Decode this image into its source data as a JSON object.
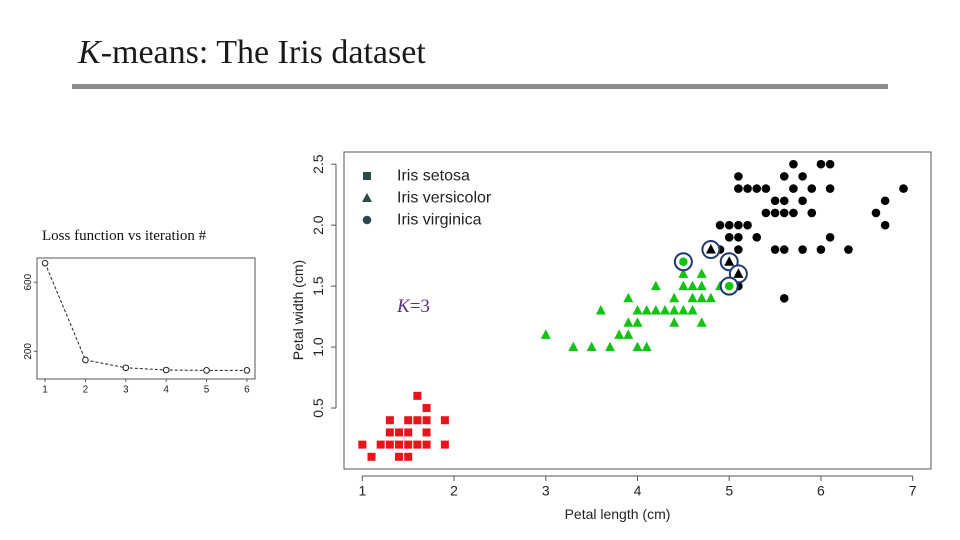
{
  "slide": {
    "title_k": "K",
    "title_rest": "-means: The Iris dataset",
    "loss_label": "Loss function vs iteration #",
    "k_prefix": "K",
    "k_suffix": "=3"
  },
  "colors": {
    "setosa": "#e8141b",
    "versicolor": "#14c214",
    "virginica": "#000000",
    "highlight": "#1f3a6e",
    "legend_marker": "#2d4a4a",
    "title_rule": "#8c8c8c",
    "k_label": "#5a2e86"
  },
  "chart_data": [
    {
      "type": "line",
      "title": "Loss function vs iteration #",
      "xlabel": "",
      "ylabel": "",
      "x": [
        1,
        2,
        3,
        4,
        5,
        6
      ],
      "values": [
        710,
        150,
        105,
        92,
        90,
        90
      ],
      "xticks": [
        "1",
        "2",
        "3",
        "4",
        "5",
        "6"
      ],
      "yticks": [
        "200",
        "600"
      ],
      "xlim": [
        0.8,
        6.2
      ],
      "ylim": [
        40,
        740
      ],
      "marker": "open-circle",
      "line_style": "dashed"
    },
    {
      "type": "scatter",
      "xlabel": "Petal length (cm)",
      "ylabel": "Petal width (cm)",
      "xlim": [
        0.8,
        7.2
      ],
      "ylim": [
        0,
        2.6
      ],
      "xticks": [
        "1",
        "2",
        "3",
        "4",
        "5",
        "6",
        "7"
      ],
      "yticks": [
        "0.5",
        "1.0",
        "1.5",
        "2.0",
        "2.5"
      ],
      "legend": {
        "position": "top-left",
        "entries": [
          "Iris setosa",
          "Iris versicolor",
          "Iris virginica"
        ]
      },
      "series": [
        {
          "name": "Iris setosa",
          "marker": "square",
          "points": [
            [
              1.0,
              0.2
            ],
            [
              1.1,
              0.1
            ],
            [
              1.2,
              0.2
            ],
            [
              1.3,
              0.2
            ],
            [
              1.3,
              0.3
            ],
            [
              1.3,
              0.4
            ],
            [
              1.4,
              0.1
            ],
            [
              1.4,
              0.2
            ],
            [
              1.4,
              0.3
            ],
            [
              1.5,
              0.1
            ],
            [
              1.5,
              0.2
            ],
            [
              1.5,
              0.3
            ],
            [
              1.5,
              0.4
            ],
            [
              1.6,
              0.2
            ],
            [
              1.6,
              0.4
            ],
            [
              1.6,
              0.6
            ],
            [
              1.7,
              0.2
            ],
            [
              1.7,
              0.3
            ],
            [
              1.7,
              0.4
            ],
            [
              1.7,
              0.5
            ],
            [
              1.9,
              0.2
            ],
            [
              1.9,
              0.4
            ]
          ]
        },
        {
          "name": "Iris versicolor",
          "marker": "triangle",
          "points": [
            [
              3.0,
              1.1
            ],
            [
              3.3,
              1.0
            ],
            [
              3.5,
              1.0
            ],
            [
              3.6,
              1.3
            ],
            [
              3.7,
              1.0
            ],
            [
              3.8,
              1.1
            ],
            [
              3.9,
              1.1
            ],
            [
              3.9,
              1.2
            ],
            [
              3.9,
              1.4
            ],
            [
              4.0,
              1.0
            ],
            [
              4.0,
              1.2
            ],
            [
              4.0,
              1.3
            ],
            [
              4.1,
              1.0
            ],
            [
              4.1,
              1.3
            ],
            [
              4.2,
              1.3
            ],
            [
              4.2,
              1.5
            ],
            [
              4.3,
              1.3
            ],
            [
              4.4,
              1.2
            ],
            [
              4.4,
              1.3
            ],
            [
              4.4,
              1.4
            ],
            [
              4.5,
              1.3
            ],
            [
              4.5,
              1.5
            ],
            [
              4.5,
              1.6
            ],
            [
              4.6,
              1.3
            ],
            [
              4.6,
              1.4
            ],
            [
              4.6,
              1.5
            ],
            [
              4.7,
              1.2
            ],
            [
              4.7,
              1.4
            ],
            [
              4.7,
              1.5
            ],
            [
              4.7,
              1.6
            ],
            [
              4.8,
              1.4
            ],
            [
              4.8,
              1.8
            ],
            [
              4.9,
              1.5
            ],
            [
              5.0,
              1.7
            ],
            [
              5.1,
              1.6
            ]
          ]
        },
        {
          "name": "Iris virginica",
          "marker": "circle",
          "points": [
            [
              4.5,
              1.7
            ],
            [
              4.8,
              1.8
            ],
            [
              4.9,
              1.8
            ],
            [
              4.9,
              2.0
            ],
            [
              5.0,
              1.5
            ],
            [
              5.0,
              1.9
            ],
            [
              5.0,
              2.0
            ],
            [
              5.1,
              1.5
            ],
            [
              5.1,
              1.8
            ],
            [
              5.1,
              1.9
            ],
            [
              5.1,
              2.0
            ],
            [
              5.1,
              2.3
            ],
            [
              5.1,
              2.4
            ],
            [
              5.2,
              2.0
            ],
            [
              5.2,
              2.3
            ],
            [
              5.3,
              1.9
            ],
            [
              5.3,
              2.3
            ],
            [
              5.4,
              2.1
            ],
            [
              5.4,
              2.3
            ],
            [
              5.5,
              1.8
            ],
            [
              5.5,
              2.1
            ],
            [
              5.5,
              2.2
            ],
            [
              5.6,
              1.4
            ],
            [
              5.6,
              1.8
            ],
            [
              5.6,
              2.1
            ],
            [
              5.6,
              2.2
            ],
            [
              5.6,
              2.4
            ],
            [
              5.7,
              2.1
            ],
            [
              5.7,
              2.3
            ],
            [
              5.7,
              2.5
            ],
            [
              5.8,
              1.8
            ],
            [
              5.8,
              2.2
            ],
            [
              5.8,
              2.4
            ],
            [
              5.9,
              2.1
            ],
            [
              5.9,
              2.3
            ],
            [
              6.0,
              1.8
            ],
            [
              6.0,
              2.5
            ],
            [
              6.1,
              1.9
            ],
            [
              6.1,
              2.3
            ],
            [
              6.1,
              2.5
            ],
            [
              6.3,
              1.8
            ],
            [
              6.6,
              2.1
            ],
            [
              6.7,
              2.0
            ],
            [
              6.7,
              2.2
            ],
            [
              6.9,
              2.3
            ]
          ]
        }
      ],
      "highlighted": [
        {
          "x": 4.5,
          "y": 1.7,
          "marker": "circle",
          "fill": "#14c214"
        },
        {
          "x": 4.8,
          "y": 1.8,
          "marker": "triangle",
          "fill": "#000000"
        },
        {
          "x": 5.0,
          "y": 1.7,
          "marker": "triangle",
          "fill": "#000000"
        },
        {
          "x": 5.1,
          "y": 1.6,
          "marker": "triangle",
          "fill": "#000000"
        },
        {
          "x": 5.0,
          "y": 1.5,
          "marker": "circle",
          "fill": "#14c214"
        }
      ],
      "annotations": [
        "K=3"
      ]
    }
  ]
}
